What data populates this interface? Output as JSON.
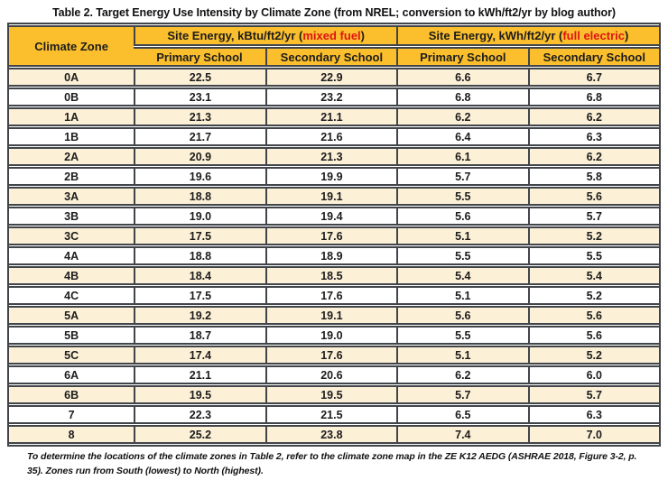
{
  "title": "Table 2. Target Energy Use Intensity by Climate Zone (from NREL; conversion to kWh/ft2/yr by blog author)",
  "table": {
    "corner_header": "Climate Zone",
    "groups": [
      {
        "prefix": "Site Energy, kBtu/ft2/yr (",
        "highlight": "mixed fuel",
        "suffix": ")",
        "subcolumns": [
          "Primary School",
          "Secondary School"
        ]
      },
      {
        "prefix": "Site Energy, kWh/ft2/yr (",
        "highlight": "full electric",
        "suffix": ")",
        "subcolumns": [
          "Primary School",
          "Secondary School"
        ]
      }
    ],
    "rows": [
      {
        "zone": "0A",
        "values": [
          "22.5",
          "22.9",
          "6.6",
          "6.7"
        ]
      },
      {
        "zone": "0B",
        "values": [
          "23.1",
          "23.2",
          "6.8",
          "6.8"
        ]
      },
      {
        "zone": "1A",
        "values": [
          "21.3",
          "21.1",
          "6.2",
          "6.2"
        ]
      },
      {
        "zone": "1B",
        "values": [
          "21.7",
          "21.6",
          "6.4",
          "6.3"
        ]
      },
      {
        "zone": "2A",
        "values": [
          "20.9",
          "21.3",
          "6.1",
          "6.2"
        ]
      },
      {
        "zone": "2B",
        "values": [
          "19.6",
          "19.9",
          "5.7",
          "5.8"
        ]
      },
      {
        "zone": "3A",
        "values": [
          "18.8",
          "19.1",
          "5.5",
          "5.6"
        ]
      },
      {
        "zone": "3B",
        "values": [
          "19.0",
          "19.4",
          "5.6",
          "5.7"
        ]
      },
      {
        "zone": "3C",
        "values": [
          "17.5",
          "17.6",
          "5.1",
          "5.2"
        ]
      },
      {
        "zone": "4A",
        "values": [
          "18.8",
          "18.9",
          "5.5",
          "5.5"
        ]
      },
      {
        "zone": "4B",
        "values": [
          "18.4",
          "18.5",
          "5.4",
          "5.4"
        ]
      },
      {
        "zone": "4C",
        "values": [
          "17.5",
          "17.6",
          "5.1",
          "5.2"
        ]
      },
      {
        "zone": "5A",
        "values": [
          "19.2",
          "19.1",
          "5.6",
          "5.6"
        ]
      },
      {
        "zone": "5B",
        "values": [
          "18.7",
          "19.0",
          "5.5",
          "5.6"
        ]
      },
      {
        "zone": "5C",
        "values": [
          "17.4",
          "17.6",
          "5.1",
          "5.2"
        ]
      },
      {
        "zone": "6A",
        "values": [
          "21.1",
          "20.6",
          "6.2",
          "6.0"
        ]
      },
      {
        "zone": "6B",
        "values": [
          "19.5",
          "19.5",
          "5.7",
          "5.7"
        ]
      },
      {
        "zone": "7",
        "values": [
          "22.3",
          "21.5",
          "6.5",
          "6.3"
        ]
      },
      {
        "zone": "8",
        "values": [
          "25.2",
          "23.8",
          "7.4",
          "7.0"
        ]
      }
    ]
  },
  "footnote": "To determine the locations of the climate zones in Table 2, refer to the climate zone map in the ZE K12 AEDG (ASHRAE 2018, Figure 3-2, p. 35).  Zones run from South (lowest) to North (highest).",
  "colors": {
    "header_gold": "#FBBF2D",
    "zone_column_tan": "#FAE3AD",
    "stripe_cream": "#FCF0D6",
    "stripe_white": "#FFFFFF",
    "border_dark": "#41454A",
    "highlight_red": "#DE1414"
  },
  "chart_data": {
    "type": "table",
    "title": "Table 2. Target Energy Use Intensity by Climate Zone (from NREL; conversion to kWh/ft2/yr by blog author)",
    "columns": [
      "Climate Zone",
      "Site Energy, kBtu/ft2/yr (mixed fuel) - Primary School",
      "Site Energy, kBtu/ft2/yr (mixed fuel) - Secondary School",
      "Site Energy, kWh/ft2/yr (full electric) - Primary School",
      "Site Energy, kWh/ft2/yr (full electric) - Secondary School"
    ],
    "rows": [
      [
        "0A",
        22.5,
        22.9,
        6.6,
        6.7
      ],
      [
        "0B",
        23.1,
        23.2,
        6.8,
        6.8
      ],
      [
        "1A",
        21.3,
        21.1,
        6.2,
        6.2
      ],
      [
        "1B",
        21.7,
        21.6,
        6.4,
        6.3
      ],
      [
        "2A",
        20.9,
        21.3,
        6.1,
        6.2
      ],
      [
        "2B",
        19.6,
        19.9,
        5.7,
        5.8
      ],
      [
        "3A",
        18.8,
        19.1,
        5.5,
        5.6
      ],
      [
        "3B",
        19.0,
        19.4,
        5.6,
        5.7
      ],
      [
        "3C",
        17.5,
        17.6,
        5.1,
        5.2
      ],
      [
        "4A",
        18.8,
        18.9,
        5.5,
        5.5
      ],
      [
        "4B",
        18.4,
        18.5,
        5.4,
        5.4
      ],
      [
        "4C",
        17.5,
        17.6,
        5.1,
        5.2
      ],
      [
        "5A",
        19.2,
        19.1,
        5.6,
        5.6
      ],
      [
        "5B",
        18.7,
        19.0,
        5.5,
        5.6
      ],
      [
        "5C",
        17.4,
        17.6,
        5.1,
        5.2
      ],
      [
        "6A",
        21.1,
        20.6,
        6.2,
        6.0
      ],
      [
        "6B",
        19.5,
        19.5,
        5.7,
        5.7
      ],
      [
        "7",
        22.3,
        21.5,
        6.5,
        6.3
      ],
      [
        "8",
        25.2,
        23.8,
        7.4,
        7.0
      ]
    ],
    "footnote": "To determine the locations of the climate zones in Table 2, refer to the climate zone map in the ZE K12 AEDG (ASHRAE 2018, Figure 3-2, p. 35).  Zones run from South (lowest) to North (highest)."
  }
}
